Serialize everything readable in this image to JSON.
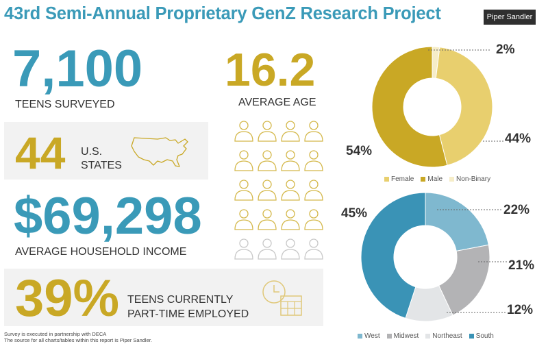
{
  "header": {
    "title": "43rd Semi-Annual Proprietary GenZ Research Project",
    "brand": "Piper Sandler"
  },
  "stats": {
    "teens_value": "7,100",
    "teens_label": "TEENS SURVEYED",
    "states_value": "44",
    "states_label_1": "U.S.",
    "states_label_2": "STATES",
    "income_value": "$69,298",
    "income_label": "AVERAGE HOUSEHOLD INCOME",
    "employed_value": "39%",
    "employed_label_1": "TEENS CURRENTLY",
    "employed_label_2": "PART-TIME EMPLOYED",
    "age_value": "16.2",
    "age_label": "AVERAGE AGE"
  },
  "people_grid": {
    "rows": 5,
    "cols": 4,
    "filled_rows": 4,
    "filled_color": "#d4b84a",
    "empty_color": "#c8c8c8"
  },
  "colors": {
    "blue": "#3a9ab8",
    "gold": "#c9a825"
  },
  "footer": {
    "line1": "Survey is executed in partnership with DECA",
    "line2": "The source for all charts/tables within this report is Piper Sandler."
  },
  "chart_data": [
    {
      "type": "pie",
      "donut": true,
      "categories": [
        "Female",
        "Male",
        "Non-Binary"
      ],
      "values": [
        44,
        54,
        2
      ],
      "labels": [
        "44%",
        "54%",
        "2%"
      ],
      "colors": [
        "#e8cf6e",
        "#c9a825",
        "#f6edc8"
      ],
      "legend": "bottom"
    },
    {
      "type": "pie",
      "donut": true,
      "categories": [
        "West",
        "Midwest",
        "Northeast",
        "South"
      ],
      "values": [
        22,
        21,
        12,
        45
      ],
      "labels": [
        "22%",
        "21%",
        "12%",
        "45%"
      ],
      "colors": [
        "#7fb8cf",
        "#b3b3b5",
        "#e3e5e7",
        "#3a93b6"
      ],
      "legend": "bottom"
    }
  ]
}
